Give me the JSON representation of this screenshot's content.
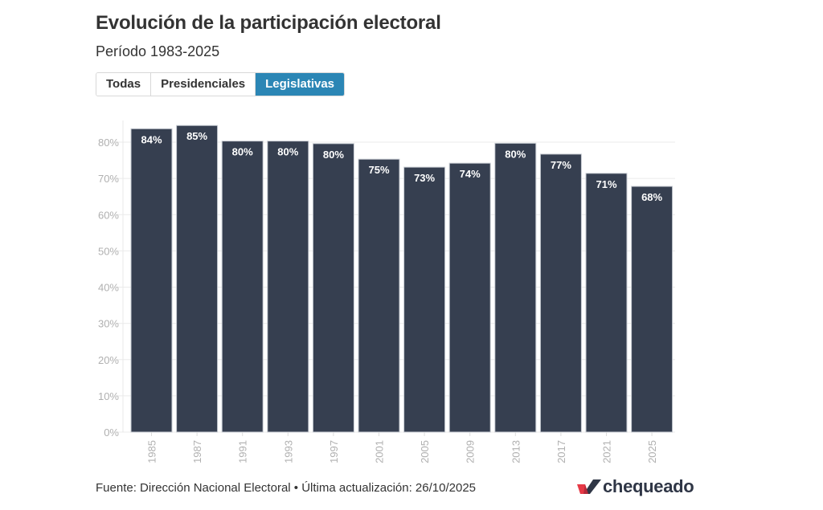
{
  "header": {
    "title": "Evolución de la participación electoral",
    "subtitle": "Período 1983-2025"
  },
  "tabs": [
    {
      "label": "Todas",
      "active": false
    },
    {
      "label": "Presidenciales",
      "active": false
    },
    {
      "label": "Legislativas",
      "active": true
    }
  ],
  "colors": {
    "bar": "#363f50",
    "active_tab": "#2b86b5",
    "gridline": "#ebebeb",
    "axis_text": "#b0b0b0"
  },
  "chart_data": {
    "type": "bar",
    "title": "Evolución de la participación electoral",
    "subtitle": "Período 1983-2025",
    "categories": [
      "1985",
      "1987",
      "1991",
      "1993",
      "1997",
      "2001",
      "2005",
      "2009",
      "2013",
      "2017",
      "2021",
      "2025"
    ],
    "values": [
      83.7,
      84.6,
      80.3,
      80.3,
      79.6,
      75.3,
      73.1,
      74.2,
      79.7,
      76.7,
      71.4,
      67.8
    ],
    "data_labels": [
      "84%",
      "85%",
      "80%",
      "80%",
      "80%",
      "75%",
      "73%",
      "74%",
      "80%",
      "77%",
      "71%",
      "68%"
    ],
    "xlabel": "",
    "ylabel": "",
    "ylim": [
      0,
      85
    ],
    "yticks": [
      0,
      10,
      20,
      30,
      40,
      50,
      60,
      70,
      80
    ],
    "ytick_labels": [
      "0%",
      "10%",
      "20%",
      "30%",
      "40%",
      "50%",
      "60%",
      "70%",
      "80%"
    ],
    "grid": true,
    "legend": "none"
  },
  "footer": {
    "source": "Fuente: Dirección Nacional Electoral • Última actualización: 26/10/2025"
  },
  "logo": {
    "text": "chequeado"
  }
}
